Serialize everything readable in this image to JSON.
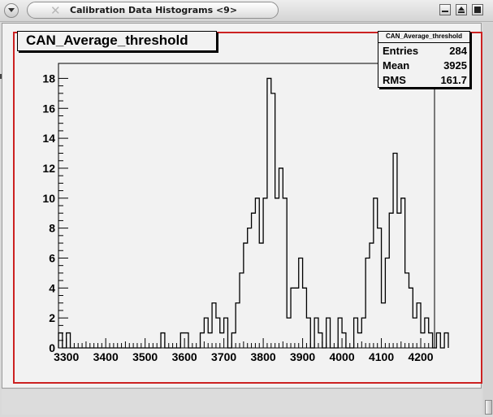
{
  "window": {
    "title": "Calibration Data Histograms <9>",
    "menu_icon": "chevron-down-icon",
    "buttons": [
      "minimize-icon",
      "restore-icon",
      "close-icon"
    ]
  },
  "colors": {
    "pad_border": "#cc2222",
    "canvas_bg": "#f2f2f2",
    "line": "#000000"
  },
  "histogram": {
    "title": "CAN_Average_threshold"
  },
  "stats": {
    "name": "CAN_Average_threshold",
    "rows": [
      {
        "label": "Entries",
        "value": "284"
      },
      {
        "label": "Mean",
        "value": "3925"
      },
      {
        "label": "RMS",
        "value": "161.7"
      }
    ]
  },
  "chart_data": {
    "type": "bar",
    "style": "step-histogram",
    "title": "CAN_Average_threshold",
    "xlabel": "",
    "ylabel": "",
    "xlim": [
      3280,
      4235
    ],
    "ylim": [
      0,
      19
    ],
    "bin_width": 10,
    "bin_edges_start": 3280,
    "x_ticks": [
      3300,
      3400,
      3500,
      3600,
      3700,
      3800,
      3900,
      4000,
      4100,
      4200
    ],
    "y_ticks": [
      0,
      2,
      4,
      6,
      8,
      10,
      12,
      14,
      16,
      18
    ],
    "grid": false,
    "values": [
      1,
      0,
      1,
      0,
      0,
      0,
      0,
      0,
      0,
      0,
      0,
      0,
      0,
      0,
      0,
      0,
      0,
      0,
      0,
      0,
      0,
      0,
      0,
      0,
      0,
      0,
      1,
      0,
      0,
      0,
      0,
      1,
      1,
      0,
      0,
      0,
      1,
      2,
      1,
      3,
      2,
      1,
      2,
      0,
      1,
      3,
      5,
      7,
      8,
      9,
      10,
      7,
      10,
      18,
      17,
      10,
      12,
      10,
      2,
      4,
      4,
      6,
      4,
      2,
      0,
      2,
      1,
      0,
      2,
      0,
      0,
      2,
      1,
      0,
      0,
      2,
      1,
      2,
      6,
      7,
      10,
      8,
      3,
      6,
      9,
      13,
      9,
      10,
      5,
      4,
      2,
      3,
      1,
      2,
      1,
      0,
      1,
      0,
      1
    ]
  }
}
